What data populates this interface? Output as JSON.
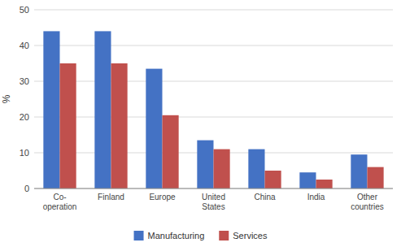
{
  "chart_data": {
    "type": "bar",
    "ylabel": "%",
    "categories": [
      "Co-\noperation",
      "Finland",
      "Europe",
      "United\nStates",
      "China",
      "India",
      "Other\ncountries"
    ],
    "series": [
      {
        "name": "Manufacturing",
        "color": "#4472C4",
        "values": [
          44,
          44,
          33.5,
          13.5,
          11,
          4.5,
          9.5
        ]
      },
      {
        "name": "Services",
        "color": "#C0504D",
        "values": [
          35,
          35,
          20.5,
          11,
          5,
          2.5,
          6
        ]
      }
    ],
    "ylim": [
      0,
      50
    ],
    "yticks": [
      0,
      10,
      20,
      30,
      40,
      50
    ],
    "grid": true,
    "legend": "bottom"
  }
}
